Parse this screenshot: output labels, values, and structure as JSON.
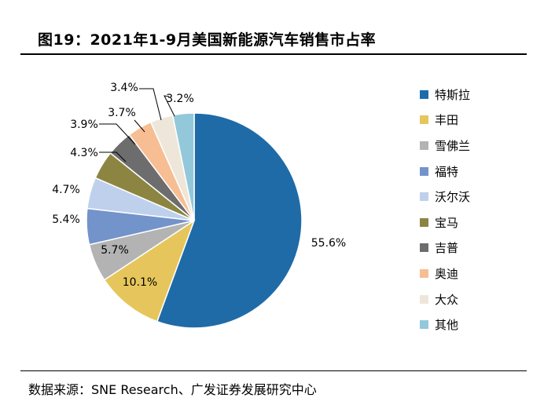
{
  "title": "图19：2021年1-9月美国新能源汽车销售市占率",
  "source": "数据来源：SNE Research、广发证券发展研究中心",
  "chart_data": {
    "type": "pie",
    "title": "2021年1-9月美国新能源汽车销售市占率",
    "unit": "%",
    "slices": [
      {
        "label": "特斯拉",
        "value": 55.6,
        "display": "55.6%",
        "color": "#1F6BA8"
      },
      {
        "label": "丰田",
        "value": 10.1,
        "display": "10.1%",
        "color": "#E6C65C"
      },
      {
        "label": "雪佛兰",
        "value": 5.7,
        "display": "5.7%",
        "color": "#B3B3B3"
      },
      {
        "label": "福特",
        "value": 5.4,
        "display": "5.4%",
        "color": "#7393CB"
      },
      {
        "label": "沃尔沃",
        "value": 4.7,
        "display": "4.7%",
        "color": "#BED0EC"
      },
      {
        "label": "宝马",
        "value": 4.3,
        "display": "4.3%",
        "color": "#8C8542"
      },
      {
        "label": "吉普",
        "value": 3.9,
        "display": "3.9%",
        "color": "#6D6D6D"
      },
      {
        "label": "奥迪",
        "value": 3.7,
        "display": "3.7%",
        "color": "#F7BE94"
      },
      {
        "label": "大众",
        "value": 3.4,
        "display": "3.4%",
        "color": "#EEE7D9"
      },
      {
        "label": "其他",
        "value": 3.2,
        "display": "3.2%",
        "color": "#93C8DA"
      }
    ],
    "legend_position": "right"
  }
}
